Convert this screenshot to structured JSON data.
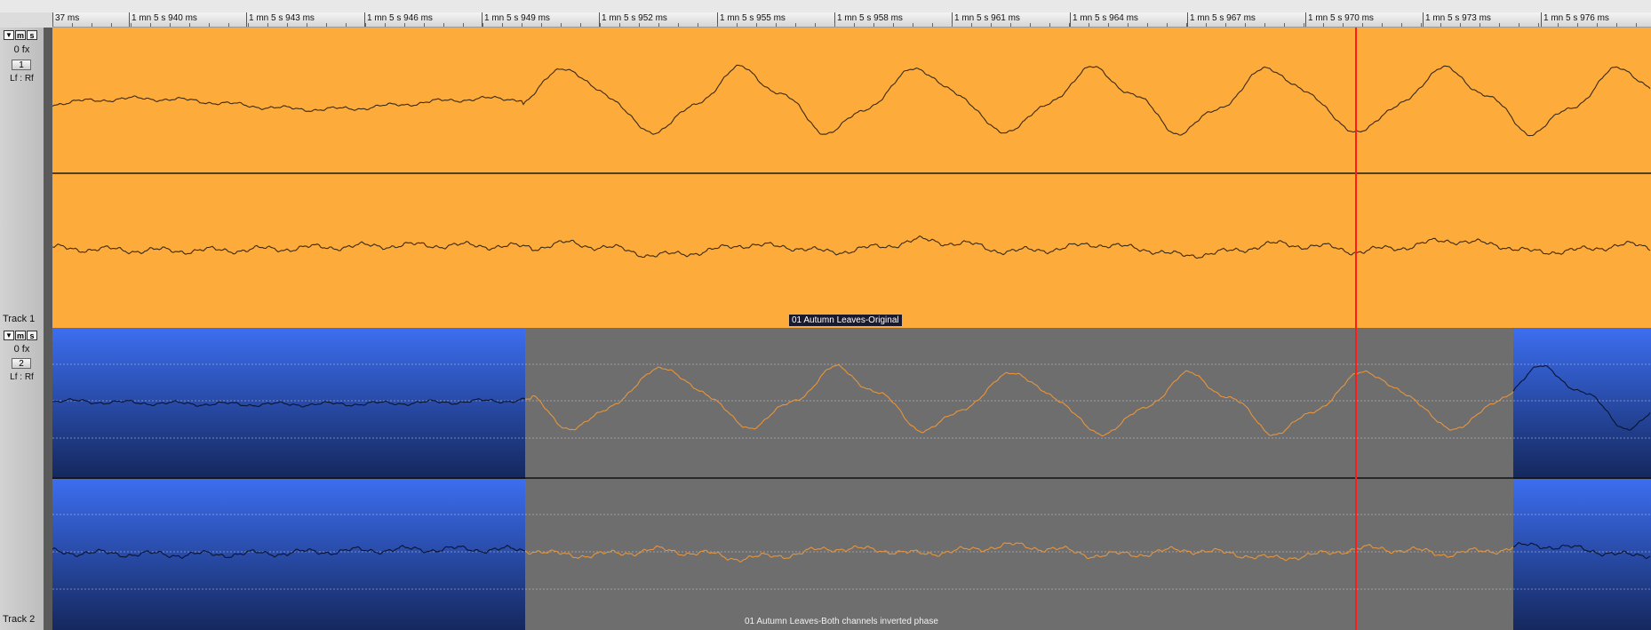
{
  "ruler": {
    "ticks": [
      "37 ms",
      "1 mn 5 s 940 ms",
      "1 mn 5 s 943 ms",
      "1 mn 5 s 946 ms",
      "1 mn 5 s 949 ms",
      "1 mn 5 s 952 ms",
      "1 mn 5 s 955 ms",
      "1 mn 5 s 958 ms",
      "1 mn 5 s 961 ms",
      "1 mn 5 s 964 ms",
      "1 mn 5 s 967 ms",
      "1 mn 5 s 970 ms",
      "1 mn 5 s 973 ms",
      "1 mn 5 s 976 ms"
    ]
  },
  "tracks": [
    {
      "name": "Track 1",
      "fx": "0 fx",
      "number": "1",
      "pan": "Lf : Rf",
      "buttons": {
        "collapse": "▼",
        "mute": "m",
        "solo": "s"
      },
      "clip_label": "01 Autumn Leaves-Original",
      "colors": {
        "clip": "#fdab3b",
        "wave": "#3a2a12"
      }
    },
    {
      "name": "Track 2",
      "fx": "0 fx",
      "number": "2",
      "pan": "Lf : Rf",
      "buttons": {
        "collapse": "▼",
        "mute": "m",
        "solo": "s"
      },
      "clip_label": "01 Autumn Leaves-Both channels inverted phase",
      "colors": {
        "clip_top": "#3c6ef0",
        "clip_bottom": "#15285e",
        "selection": "#6e6e6e",
        "wave_selected": "#e8943a",
        "wave": "#0a1430"
      }
    }
  ],
  "playhead_color": "#ff1a1a"
}
